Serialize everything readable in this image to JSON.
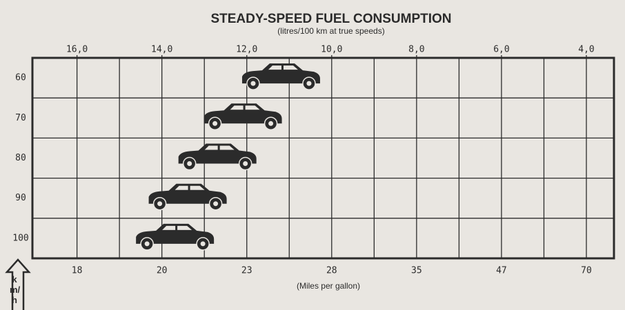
{
  "chart_data": {
    "type": "marker",
    "title": "STEADY-SPEED FUEL CONSUMPTION",
    "subtitle": "(litres/100 km at true speeds)",
    "x_label": "(Miles per gallon)",
    "y_label": "km/h",
    "categories": [
      "60",
      "70",
      "80",
      "90",
      "100"
    ],
    "values": [
      11.2,
      12.1,
      12.7,
      13.4,
      13.7
    ],
    "color": "#2b2b2b",
    "xlim": [
      17.05,
      3.35
    ],
    "xticks": [
      {
        "value": 16,
        "label": "16,0"
      },
      {
        "value": 14,
        "label": "14,0"
      },
      {
        "value": 12,
        "label": "12,0"
      },
      {
        "value": 10,
        "label": "10,0"
      },
      {
        "value": 8,
        "label": "8,0"
      },
      {
        "value": 6,
        "label": "6,0"
      },
      {
        "value": 4,
        "label": "4,0"
      }
    ],
    "xminorticks": [
      15,
      13,
      11,
      9,
      7,
      5
    ],
    "x2ticks": [
      18,
      20,
      23,
      28,
      35,
      47,
      70
    ],
    "grid": true
  }
}
